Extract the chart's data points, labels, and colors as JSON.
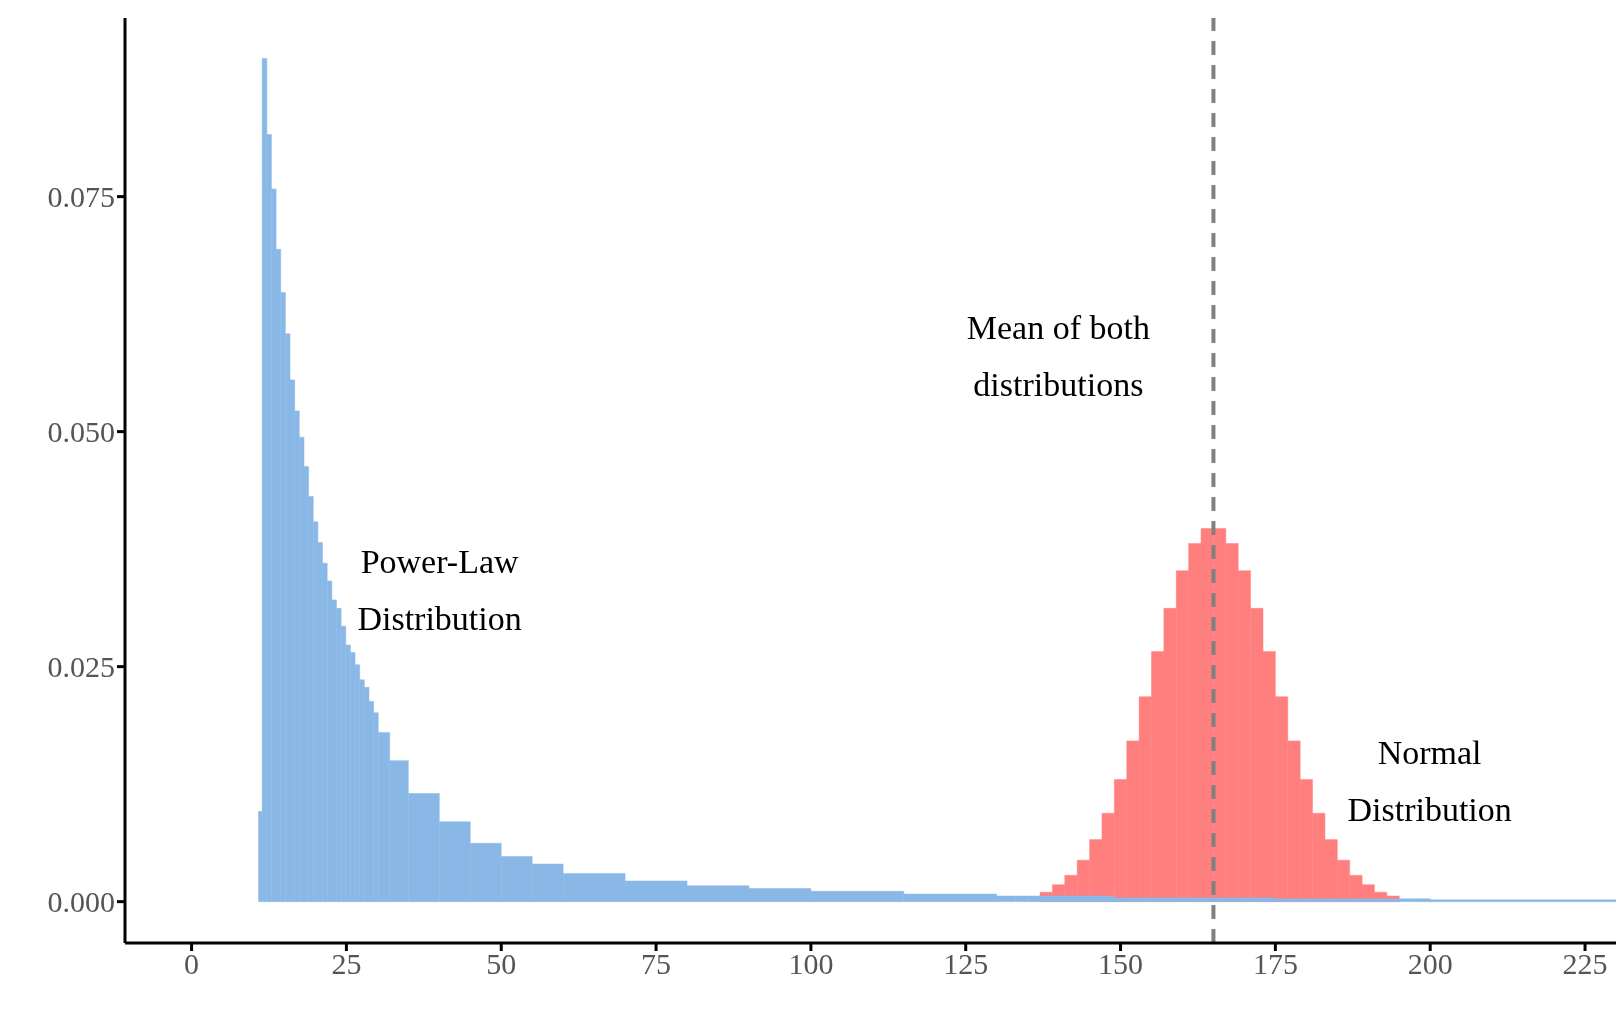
{
  "chart_data": {
    "type": "histogram",
    "xlim": [
      -10.75,
      230
    ],
    "ylim": [
      -0.0044,
      0.094
    ],
    "xticks": [
      0,
      25,
      50,
      75,
      100,
      125,
      150,
      175,
      200,
      225
    ],
    "yticks": [
      {
        "value": 0,
        "label": "0.000"
      },
      {
        "value": 0.025,
        "label": "0.025"
      },
      {
        "value": 0.05,
        "label": "0.050"
      },
      {
        "value": 0.075,
        "label": "0.075"
      }
    ],
    "bins": [
      10.8,
      11.4,
      12.15,
      12.9,
      13.65,
      14.4,
      15.15,
      15.9,
      16.65,
      17.4,
      18.15,
      18.9,
      19.65,
      20.4,
      21.15,
      21.9,
      22.65,
      23.4,
      24.15,
      24.9,
      25.65,
      26.4,
      27.15,
      27.9,
      28.65,
      29.4,
      30.15,
      32,
      35,
      40,
      45,
      50,
      55,
      60,
      70,
      80,
      90,
      100,
      115,
      130,
      131,
      133,
      135,
      137,
      139,
      141,
      143,
      145,
      147,
      149,
      151,
      153,
      155,
      157,
      159,
      161,
      163,
      165,
      167,
      169,
      171,
      173,
      175,
      177,
      179,
      181,
      183,
      185,
      187,
      189,
      191,
      193,
      195,
      197,
      199,
      200,
      230
    ],
    "series": [
      {
        "name": "Power-Law Distribution",
        "color": "#8ab8e6",
        "values": [
          0.0096,
          0.0897,
          0.0816,
          0.0758,
          0.0694,
          0.0648,
          0.0604,
          0.0555,
          0.0522,
          0.0494,
          0.0463,
          0.0431,
          0.0404,
          0.0382,
          0.036,
          0.0341,
          0.0321,
          0.0312,
          0.0293,
          0.0273,
          0.0265,
          0.0252,
          0.0236,
          0.0228,
          0.0213,
          0.0201,
          0.018,
          0.015,
          0.0115,
          0.0085,
          0.0062,
          0.0048,
          0.004,
          0.003,
          0.0022,
          0.0017,
          0.0014,
          0.0011,
          0.0008,
          0.0006,
          0.0006,
          0.0006,
          0.0006,
          0.0006,
          0.0006,
          0.0006,
          0.0006,
          0.0006,
          0.0006,
          0.0004,
          0.0004,
          0.0004,
          0.0004,
          0.0004,
          0.0004,
          0.0004,
          0.0004,
          0.0004,
          0.0004,
          0.0004,
          0.0004,
          0.0004,
          0.0003,
          0.0003,
          0.0003,
          0.0003,
          0.0003,
          0.0003,
          0.0003,
          0.0003,
          0.0003,
          0.0003,
          0.0003,
          0.0003,
          0.0003,
          0.0002
        ]
      },
      {
        "name": "Normal Distribution",
        "color": "#ff7f7f",
        "values": [
          null,
          null,
          null,
          null,
          null,
          null,
          null,
          null,
          null,
          null,
          null,
          null,
          null,
          null,
          null,
          null,
          null,
          null,
          null,
          null,
          null,
          null,
          null,
          null,
          null,
          null,
          null,
          null,
          null,
          null,
          null,
          null,
          null,
          null,
          null,
          null,
          null,
          null,
          null,
          null,
          null,
          null,
          null,
          0.001,
          0.0018,
          0.0028,
          0.0044,
          0.0066,
          0.0094,
          0.013,
          0.0171,
          0.0218,
          0.0266,
          0.0312,
          0.0352,
          0.0381,
          0.0397,
          0.0397,
          0.0381,
          0.0352,
          0.0312,
          0.0266,
          0.0218,
          0.0171,
          0.013,
          0.0094,
          0.0066,
          0.0044,
          0.0028,
          0.0018,
          0.001,
          0.0006,
          null,
          null,
          null,
          null
        ]
      }
    ],
    "ref_lines": [
      {
        "axis": "x",
        "value": 165,
        "label": "Mean of both distributions",
        "color": "#808080",
        "line_style": "dashed"
      }
    ]
  }
}
